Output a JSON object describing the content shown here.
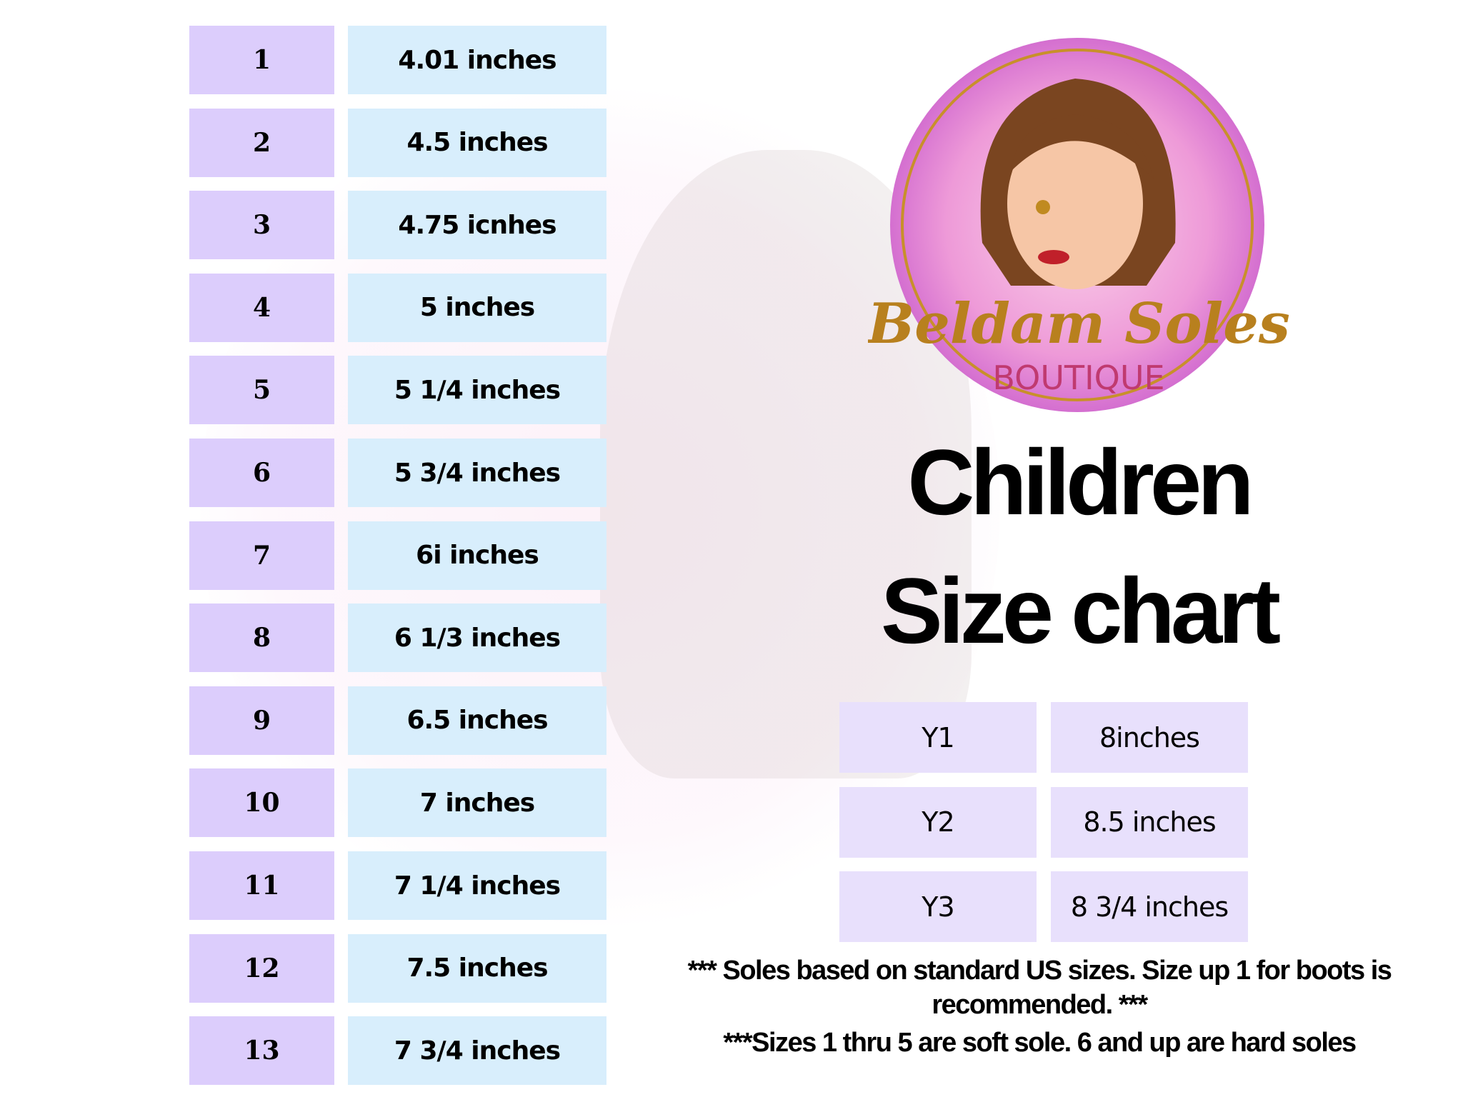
{
  "brand": {
    "name": "Beldam Soles",
    "subtitle": "BOUTIQUE"
  },
  "colors": {
    "size_cell": "#dccdfc",
    "length_cell": "#d8eefc",
    "youth_cell": "#e8e0fc",
    "logo_pink": "#e879c8",
    "logo_gold": "#c8902a"
  },
  "title": {
    "line1": "Children",
    "line2": "Size chart"
  },
  "sizes": [
    {
      "size": "1",
      "length": "4.01 inches"
    },
    {
      "size": "2",
      "length": "4.5 inches"
    },
    {
      "size": "3",
      "length": "4.75 icnhes"
    },
    {
      "size": "4",
      "length": "5 inches"
    },
    {
      "size": "5",
      "length": "5 1/4 inches"
    },
    {
      "size": "6",
      "length": "5 3/4 inches"
    },
    {
      "size": "7",
      "length": "6i inches"
    },
    {
      "size": "8",
      "length": "6 1/3 inches"
    },
    {
      "size": "9",
      "length": "6.5 inches"
    },
    {
      "size": "10",
      "length": "7 inches"
    },
    {
      "size": "11",
      "length": "7 1/4 inches"
    },
    {
      "size": "12",
      "length": "7.5 inches"
    },
    {
      "size": "13",
      "length": "7 3/4 inches"
    }
  ],
  "youth_sizes": [
    {
      "size": "Y1",
      "length": "8inches"
    },
    {
      "size": "Y2",
      "length": "8.5 inches"
    },
    {
      "size": "Y3",
      "length": "8 3/4 inches"
    }
  ],
  "notes": {
    "line1": "*** Soles based on standard US sizes. Size up 1 for boots is recommended. ***",
    "line2": "***Sizes 1 thru 5 are soft sole. 6 and up are hard soles"
  }
}
